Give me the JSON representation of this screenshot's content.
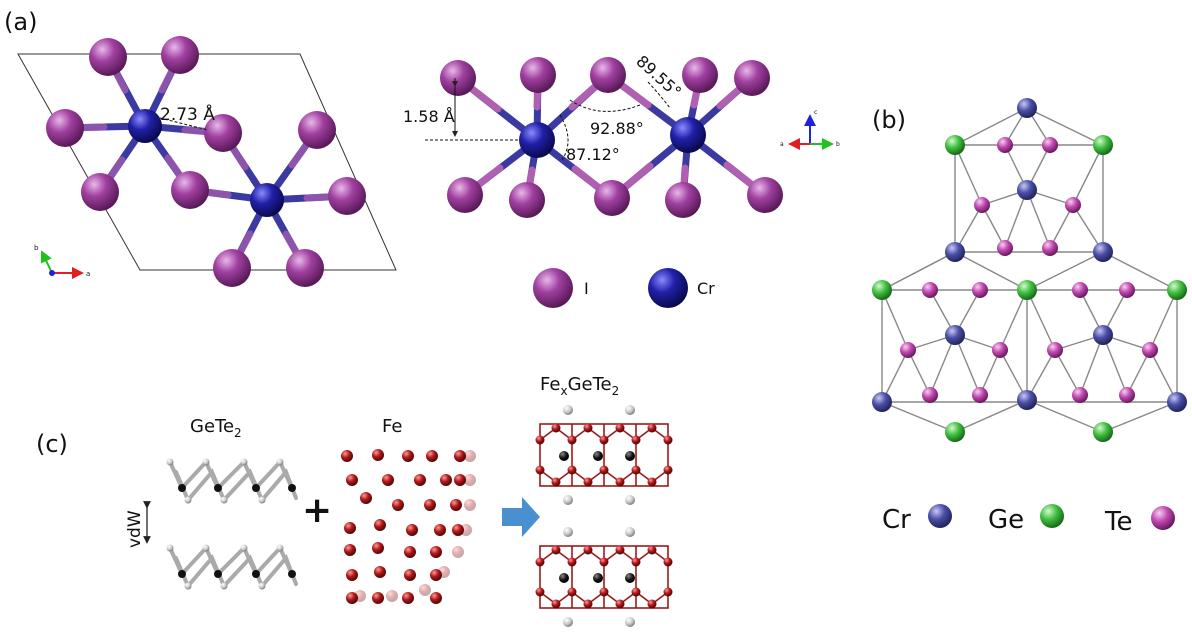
{
  "panels": {
    "a": {
      "label": "(a)",
      "bond_length": "2.73 Å",
      "height": "1.58 Å",
      "angle_1": "89.55°",
      "angle_2": "92.88°",
      "angle_3": "87.12°",
      "legend": [
        {
          "name": "I",
          "color": "#9b3a9b"
        },
        {
          "name": "Cr",
          "color": "#1f1f8f"
        }
      ],
      "axes_left": {
        "x": "a",
        "y": "b"
      },
      "axes_right": {
        "up": "c",
        "left": "a",
        "right": "b"
      }
    },
    "b": {
      "label": "(b)",
      "legend": [
        {
          "name": "Cr",
          "color": "#3b3f9a"
        },
        {
          "name": "Ge",
          "color": "#3cb43c"
        },
        {
          "name": "Te",
          "color": "#b43ca8"
        }
      ]
    },
    "c": {
      "label": "(c)",
      "titles": {
        "gete2": {
          "main": "GeTe",
          "sub": "2"
        },
        "fe": "Fe",
        "fexgete2": {
          "p1": "Fe",
          "s1": "x",
          "p2": "GeTe",
          "s2": "2"
        }
      },
      "plus": "+",
      "vdw": "vdW"
    }
  },
  "colors": {
    "iodine": "#9b3a9b",
    "chromium": "#1f1f8f",
    "bond_cr": "#2a2a9a",
    "bond_i": "#b060b0",
    "fe": "#a01818",
    "arrow": "#4a90d0"
  }
}
